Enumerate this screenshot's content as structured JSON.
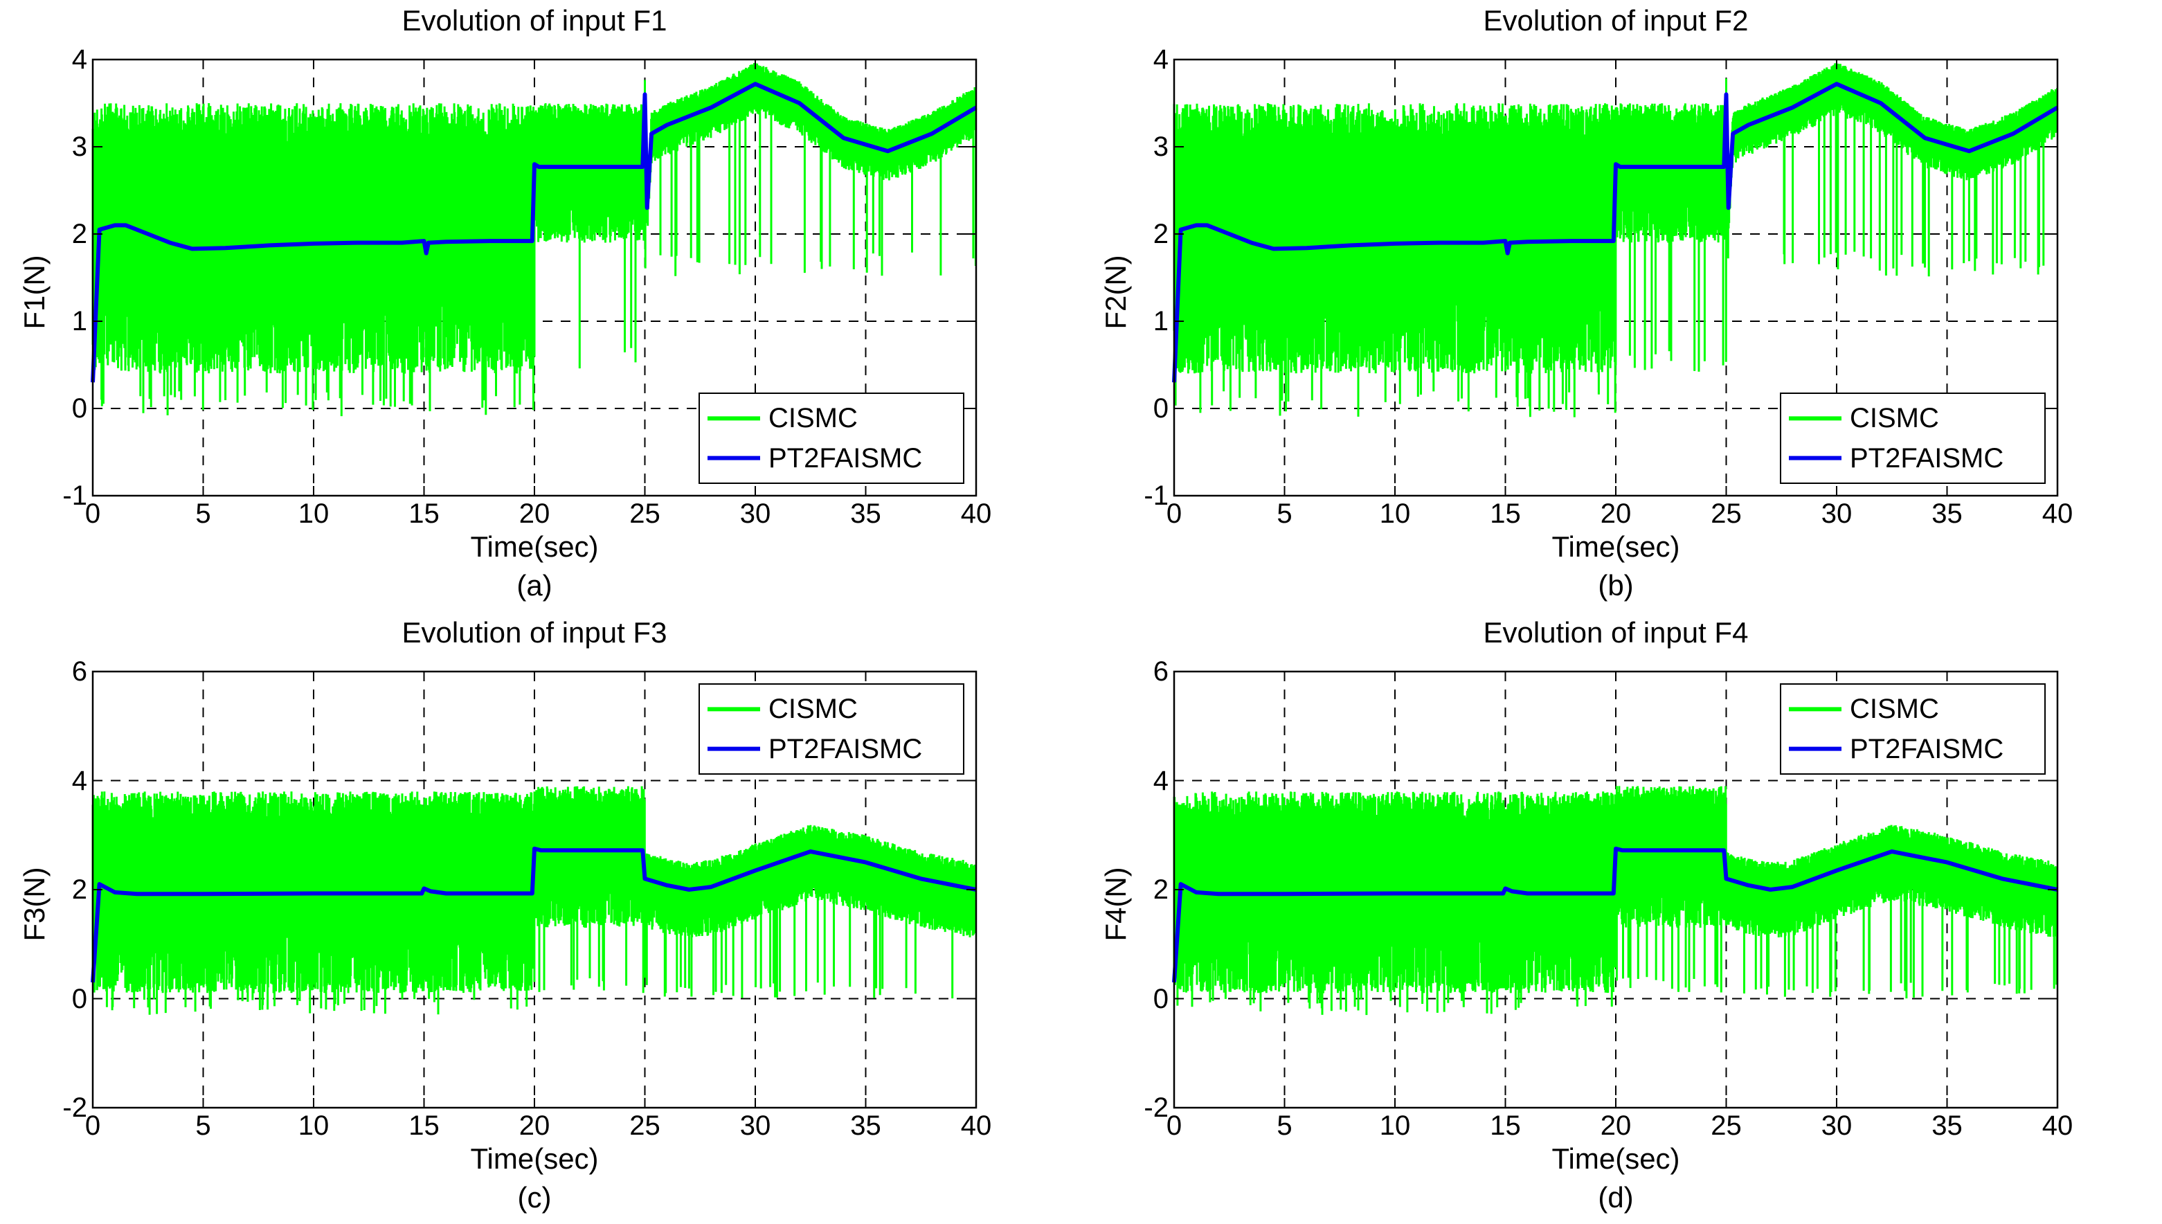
{
  "colors": {
    "cismc": "#00ff00",
    "pt2faismc": "#0000ee",
    "axes": "#000000",
    "grid": "#000000"
  },
  "chart_data": [
    {
      "type": "line",
      "title": "Evolution of input F1",
      "xlabel": "Time(sec)",
      "ylabel": "F1(N)",
      "caption": "(a)",
      "xlim": [
        0,
        40
      ],
      "ylim": [
        -1,
        4
      ],
      "xticks": [
        0,
        5,
        10,
        15,
        20,
        25,
        30,
        35,
        40
      ],
      "yticks": [
        -1,
        0,
        1,
        2,
        3,
        4
      ],
      "grid": true,
      "legend_position": "lower-right",
      "series": [
        {
          "name": "CISMC",
          "style": "chattering",
          "bands": [
            {
              "x": [
                0,
                20
              ],
              "low": 0.4,
              "high": 3.5,
              "extreme_low": -0.1
            },
            {
              "x": [
                20,
                25
              ],
              "low": 1.9,
              "high": 3.5,
              "extreme_low": 0.4
            },
            {
              "x": [
                25,
                40
              ],
              "center": "blue",
              "low_offset": -0.35,
              "high_offset": 0.25,
              "extreme_low": 1.5
            }
          ]
        },
        {
          "name": "PT2FAISMC",
          "x": [
            0,
            0.3,
            1.0,
            1.5,
            2.5,
            3.5,
            4.5,
            6,
            8,
            10,
            12,
            14,
            15,
            15.1,
            15.2,
            16,
            18,
            19.9,
            20,
            20.2,
            22,
            24.9,
            25,
            25.1,
            25.3,
            26,
            28,
            30,
            32,
            34,
            36,
            38,
            40
          ],
          "y": [
            0.3,
            2.05,
            2.1,
            2.1,
            2.0,
            1.9,
            1.83,
            1.84,
            1.87,
            1.89,
            1.9,
            1.9,
            1.92,
            1.78,
            1.9,
            1.91,
            1.92,
            1.92,
            2.8,
            2.77,
            2.77,
            2.77,
            3.6,
            2.3,
            3.15,
            3.25,
            3.45,
            3.72,
            3.5,
            3.1,
            2.95,
            3.15,
            3.45
          ]
        }
      ]
    },
    {
      "type": "line",
      "title": "Evolution of input F2",
      "xlabel": "Time(sec)",
      "ylabel": "F2(N)",
      "caption": "(b)",
      "xlim": [
        0,
        40
      ],
      "ylim": [
        -1,
        4
      ],
      "xticks": [
        0,
        5,
        10,
        15,
        20,
        25,
        30,
        35,
        40
      ],
      "yticks": [
        -1,
        0,
        1,
        2,
        3,
        4
      ],
      "grid": true,
      "legend_position": "lower-right",
      "series": [
        {
          "name": "CISMC",
          "style": "chattering",
          "bands": [
            {
              "x": [
                0,
                20
              ],
              "low": 0.4,
              "high": 3.5,
              "extreme_low": -0.1
            },
            {
              "x": [
                20,
                25
              ],
              "low": 1.9,
              "high": 3.5,
              "extreme_low": 0.4
            },
            {
              "x": [
                25,
                40
              ],
              "center": "blue",
              "low_offset": -0.35,
              "high_offset": 0.25,
              "extreme_low": 1.5
            }
          ]
        },
        {
          "name": "PT2FAISMC",
          "x": [
            0,
            0.3,
            1.0,
            1.5,
            2.5,
            3.5,
            4.5,
            6,
            8,
            10,
            12,
            14,
            15,
            15.1,
            15.2,
            16,
            18,
            19.9,
            20,
            20.2,
            22,
            24.9,
            25,
            25.1,
            25.3,
            26,
            28,
            30,
            32,
            34,
            36,
            38,
            40
          ],
          "y": [
            0.3,
            2.05,
            2.1,
            2.1,
            2.0,
            1.9,
            1.83,
            1.84,
            1.87,
            1.89,
            1.9,
            1.9,
            1.92,
            1.78,
            1.9,
            1.91,
            1.92,
            1.92,
            2.8,
            2.77,
            2.77,
            2.77,
            3.6,
            2.3,
            3.15,
            3.25,
            3.45,
            3.72,
            3.5,
            3.1,
            2.95,
            3.15,
            3.45
          ]
        }
      ]
    },
    {
      "type": "line",
      "title": "Evolution of input F3",
      "xlabel": "Time(sec)",
      "ylabel": "F3(N)",
      "caption": "(c)",
      "xlim": [
        0,
        40
      ],
      "ylim": [
        -2,
        6
      ],
      "xticks": [
        0,
        5,
        10,
        15,
        20,
        25,
        30,
        35,
        40
      ],
      "yticks": [
        -2,
        0,
        2,
        4,
        6
      ],
      "grid": true,
      "legend_position": "upper-right",
      "series": [
        {
          "name": "CISMC",
          "style": "chattering",
          "bands": [
            {
              "x": [
                0,
                20
              ],
              "low": 0.1,
              "high": 3.8,
              "extreme_low": -0.3
            },
            {
              "x": [
                20,
                25
              ],
              "low": 1.3,
              "high": 3.9,
              "extreme_low": 0.1
            },
            {
              "x": [
                25,
                40
              ],
              "center": "blue",
              "low_offset": -0.9,
              "high_offset": 0.5,
              "extreme_low": 0.0
            }
          ]
        },
        {
          "name": "PT2FAISMC",
          "x": [
            0,
            0.3,
            1,
            2,
            5,
            10,
            14.9,
            15,
            15.3,
            16,
            18,
            19.9,
            20,
            20.3,
            22,
            24.9,
            25,
            26,
            27,
            28,
            30,
            32.5,
            35,
            37.5,
            40
          ],
          "y": [
            0.3,
            2.1,
            1.95,
            1.92,
            1.92,
            1.93,
            1.93,
            2.02,
            1.97,
            1.93,
            1.93,
            1.93,
            2.75,
            2.72,
            2.72,
            2.72,
            2.2,
            2.08,
            2.0,
            2.05,
            2.35,
            2.7,
            2.5,
            2.2,
            2.0
          ]
        }
      ]
    },
    {
      "type": "line",
      "title": "Evolution of input F4",
      "xlabel": "Time(sec)",
      "ylabel": "F4(N)",
      "caption": "(d)",
      "xlim": [
        0,
        40
      ],
      "ylim": [
        -2,
        6
      ],
      "xticks": [
        0,
        5,
        10,
        15,
        20,
        25,
        30,
        35,
        40
      ],
      "yticks": [
        -2,
        0,
        2,
        4,
        6
      ],
      "grid": true,
      "legend_position": "upper-right",
      "series": [
        {
          "name": "CISMC",
          "style": "chattering",
          "bands": [
            {
              "x": [
                0,
                20
              ],
              "low": 0.1,
              "high": 3.8,
              "extreme_low": -0.3
            },
            {
              "x": [
                20,
                25
              ],
              "low": 1.3,
              "high": 3.9,
              "extreme_low": 0.1
            },
            {
              "x": [
                25,
                40
              ],
              "center": "blue",
              "low_offset": -0.9,
              "high_offset": 0.5,
              "extreme_low": 0.0
            }
          ]
        },
        {
          "name": "PT2FAISMC",
          "x": [
            0,
            0.3,
            1,
            2,
            5,
            10,
            14.9,
            15,
            15.3,
            16,
            18,
            19.9,
            20,
            20.3,
            22,
            24.9,
            25,
            26,
            27,
            28,
            30,
            32.5,
            35,
            37.5,
            40
          ],
          "y": [
            0.3,
            2.1,
            1.95,
            1.92,
            1.92,
            1.93,
            1.93,
            2.02,
            1.97,
            1.93,
            1.93,
            1.93,
            2.75,
            2.72,
            2.72,
            2.72,
            2.2,
            2.08,
            2.0,
            2.05,
            2.35,
            2.7,
            2.5,
            2.2,
            2.0
          ]
        }
      ]
    }
  ]
}
